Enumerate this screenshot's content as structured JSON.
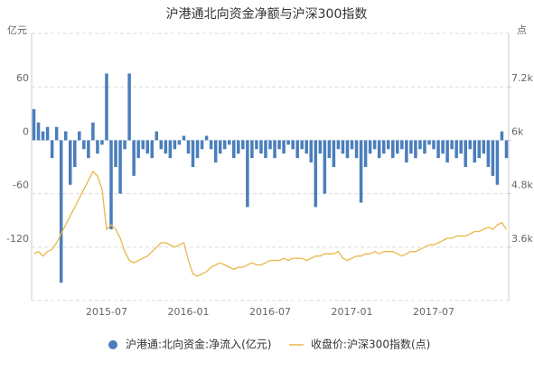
{
  "chart_data": {
    "type": "bar-line",
    "title": "沪港通北向资金净额与沪深300指数",
    "y_unit": "亿元",
    "y2_unit": "点",
    "x": [
      null,
      null,
      null,
      null,
      null,
      null,
      null,
      null,
      null,
      null,
      null,
      null,
      null,
      null,
      null,
      null,
      "2015-07",
      null,
      null,
      null,
      null,
      null,
      null,
      null,
      null,
      null,
      null,
      null,
      null,
      null,
      null,
      null,
      null,
      null,
      "2016-01",
      null,
      null,
      null,
      null,
      null,
      null,
      null,
      null,
      null,
      null,
      null,
      null,
      null,
      null,
      null,
      null,
      null,
      "2016-07",
      null,
      null,
      null,
      null,
      null,
      null,
      null,
      null,
      null,
      null,
      null,
      null,
      null,
      null,
      null,
      null,
      null,
      "2017-01",
      null,
      null,
      null,
      null,
      null,
      null,
      null,
      null,
      null,
      null,
      null,
      null,
      null,
      null,
      null,
      null,
      null,
      "2017-07",
      null,
      null,
      null,
      null,
      null,
      null,
      null,
      null,
      null,
      null,
      null,
      null,
      null,
      null,
      null,
      null
    ],
    "ylim": [
      -180,
      120
    ],
    "yticks": [
      -120,
      -60,
      0,
      60
    ],
    "y2lim": [
      2400,
      8400
    ],
    "y2ticks": [
      {
        "value": 3600,
        "label": "3.6k"
      },
      {
        "value": 4800,
        "label": "4.8k"
      },
      {
        "value": 6000,
        "label": "6k"
      },
      {
        "value": 7200,
        "label": "7.2k"
      }
    ],
    "grid": true,
    "series": [
      {
        "name": "沪港通:北向资金:净流入(亿元)",
        "type": "bar",
        "color": "#4a7ebb",
        "values": [
          35,
          20,
          10,
          15,
          -20,
          15,
          -160,
          10,
          -50,
          -30,
          10,
          -10,
          -20,
          20,
          -15,
          -5,
          75,
          -100,
          -30,
          -60,
          -10,
          75,
          -40,
          -20,
          -10,
          -15,
          -20,
          10,
          -10,
          -15,
          -20,
          -10,
          -5,
          5,
          -15,
          -30,
          -20,
          -10,
          5,
          -10,
          -25,
          -15,
          -10,
          -5,
          -20,
          -15,
          -10,
          -75,
          -20,
          -10,
          -15,
          -20,
          -10,
          -20,
          -10,
          -15,
          -5,
          -10,
          -20,
          -10,
          -15,
          -25,
          -75,
          -15,
          -60,
          -20,
          -30,
          -10,
          -15,
          -20,
          -10,
          -20,
          -70,
          -30,
          -15,
          -10,
          -20,
          -15,
          -10,
          -20,
          -15,
          -10,
          -25,
          -15,
          -20,
          -10,
          -15,
          -5,
          -10,
          -20,
          -15,
          -25,
          -10,
          -20,
          -15,
          -30,
          -10,
          -25,
          -20,
          -15,
          -30,
          -40,
          -50,
          10,
          -20
        ]
      },
      {
        "name": "收盘价:沪深300指数(点)",
        "type": "line",
        "axis": "y2",
        "color": "#e8b84a",
        "values": [
          3450,
          3500,
          3400,
          3500,
          3550,
          3700,
          3900,
          4100,
          4300,
          4500,
          4700,
          4900,
          5100,
          5300,
          5200,
          4900,
          4000,
          4100,
          4000,
          3800,
          3500,
          3300,
          3250,
          3300,
          3350,
          3400,
          3500,
          3600,
          3700,
          3700,
          3650,
          3600,
          3650,
          3700,
          3300,
          3000,
          2950,
          3000,
          3050,
          3150,
          3200,
          3250,
          3200,
          3150,
          3100,
          3150,
          3150,
          3200,
          3250,
          3200,
          3200,
          3250,
          3300,
          3300,
          3300,
          3350,
          3300,
          3350,
          3350,
          3350,
          3300,
          3350,
          3400,
          3400,
          3450,
          3450,
          3450,
          3500,
          3350,
          3300,
          3350,
          3400,
          3400,
          3450,
          3450,
          3500,
          3450,
          3500,
          3500,
          3500,
          3450,
          3400,
          3450,
          3500,
          3500,
          3550,
          3600,
          3650,
          3650,
          3700,
          3750,
          3800,
          3800,
          3850,
          3850,
          3850,
          3900,
          3950,
          3950,
          4000,
          4050,
          4000,
          4100,
          4150,
          4000
        ]
      }
    ],
    "legend": "bottom"
  }
}
